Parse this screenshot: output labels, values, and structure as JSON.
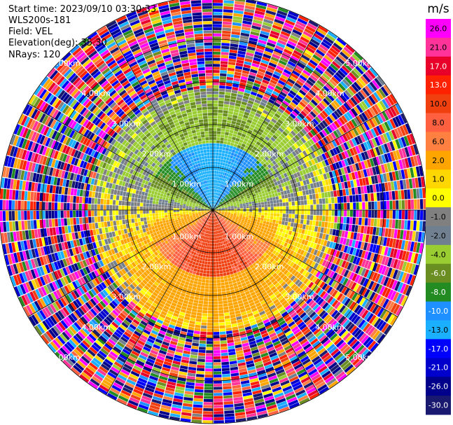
{
  "header": {
    "start_time": "Start time: 2023/09/10 03:30:33",
    "instrument": "WLS200s-181",
    "field": "Field: VEL",
    "elevation": "Elevation(deg): 35.30",
    "nrays": "NRays: 120"
  },
  "chart_data": {
    "type": "heatmap",
    "projection": "polar-ppi",
    "field": "VEL",
    "unit": "m/s",
    "n_rays": 120,
    "range_rings_km": [
      "1.00km",
      "2.00km",
      "3.00km",
      "4.00km",
      "5.00km"
    ],
    "azimuth_spokes_deg": [
      0,
      30,
      60,
      90,
      120,
      150,
      180,
      210,
      240,
      270,
      300,
      330
    ],
    "colorbar": {
      "range": [
        -30,
        30
      ],
      "tick_labels": [
        "26.0",
        "21.0",
        "17.0",
        "13.0",
        "10.0",
        "8.0",
        "6.0",
        "2.0",
        "1.0",
        "0.0",
        "-1.0",
        "-2.0",
        "-4.0",
        "-6.0",
        "-8.0",
        "-10.0",
        "-13.0",
        "-17.0",
        "-21.0",
        "-26.0",
        "-30.0"
      ],
      "bin_colors": [
        "#ff00ff",
        "#ff3399",
        "#e8002a",
        "#ff2200",
        "#f04010",
        "#ff6040",
        "#ff8040",
        "#ffa500",
        "#ffd700",
        "#ffff00",
        "#808080",
        "#708090",
        "#9acd32",
        "#6b8e23",
        "#228b22",
        "#1e90ff",
        "#1ab0ff",
        "#0000ff",
        "#0000cd",
        "#00008b",
        "#191970"
      ]
    },
    "structure": {
      "near_field": "receding (positive) velocities 10-13 m/s to the south, approaching (negative) velocities -6 to -10 m/s to the north, 0 to +2 m/s on the flanks",
      "far_field": "noisy random-color gates beyond ~2.5 km"
    }
  }
}
